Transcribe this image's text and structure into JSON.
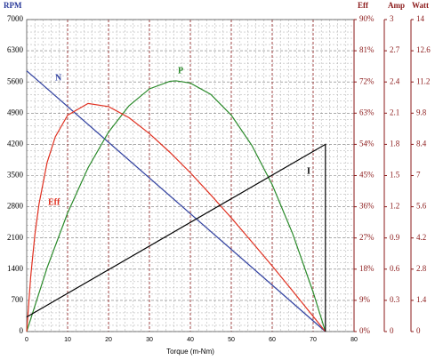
{
  "chart_data": {
    "type": "line",
    "xlabel": "Torque (m-Nm)",
    "ylabel": "RPM",
    "y2label": "Eff",
    "y3label": "Amp",
    "y4label": "Watt",
    "xlim": [
      0,
      80
    ],
    "xticks": [
      0,
      10,
      20,
      30,
      40,
      50,
      60,
      70,
      80
    ],
    "ylim": [
      0,
      7000
    ],
    "yticks": [
      0,
      700,
      1400,
      2100,
      2800,
      3500,
      4200,
      4900,
      5600,
      6300,
      7000
    ],
    "y2lim": [
      0,
      90
    ],
    "y2ticks": [
      {
        "value": 0,
        "label": "0%"
      },
      {
        "value": 9,
        "label": "9%"
      },
      {
        "value": 18,
        "label": "18%"
      },
      {
        "value": 27,
        "label": "27%"
      },
      {
        "value": 36,
        "label": "36%"
      },
      {
        "value": 45,
        "label": "45%"
      },
      {
        "value": 54,
        "label": "54%"
      },
      {
        "value": 63,
        "label": "63%"
      },
      {
        "value": 72,
        "label": "72%"
      },
      {
        "value": 81,
        "label": "81%"
      },
      {
        "value": 90,
        "label": "90%"
      }
    ],
    "y3lim": [
      0,
      3
    ],
    "y3ticks": [
      0,
      0.3,
      0.6,
      0.9,
      1.2,
      1.5,
      1.8,
      2.1,
      2.4,
      2.7,
      3
    ],
    "y4lim": [
      0,
      14
    ],
    "y4ticks": [
      0,
      1.4,
      2.8,
      4.2,
      5.6,
      7,
      8.4,
      9.8,
      11.2,
      12.6,
      14
    ],
    "grid": true,
    "series": [
      {
        "name": "N",
        "color": "#3040a0",
        "axis": "y",
        "x": [
          0,
          73
        ],
        "values": [
          5850,
          0
        ]
      },
      {
        "name": "P",
        "color": "#2a8a2a",
        "axis": "y4",
        "x": [
          0,
          5,
          10,
          15,
          20,
          25,
          30,
          35,
          36.5,
          40,
          45,
          50,
          55,
          60,
          65,
          70,
          73
        ],
        "values": [
          0,
          2.87,
          5.32,
          7.35,
          8.95,
          10.13,
          10.89,
          11.23,
          11.25,
          11.15,
          10.64,
          9.71,
          8.36,
          6.59,
          4.39,
          1.77,
          0
        ]
      },
      {
        "name": "Eff",
        "color": "#e03020",
        "axis": "y2",
        "x": [
          0,
          1,
          2,
          3,
          5,
          7,
          10,
          15,
          20,
          25,
          30,
          35,
          40,
          45,
          50,
          55,
          60,
          65,
          70,
          73
        ],
        "values": [
          0,
          16.1,
          27.9,
          36.7,
          48.8,
          56.2,
          62.4,
          65.8,
          64.9,
          61.7,
          57.1,
          51.7,
          45.8,
          39.4,
          32.8,
          25.9,
          18.9,
          11.7,
          4.4,
          0
        ]
      },
      {
        "name": "I",
        "color": "#000000",
        "axis": "y3",
        "x": [
          0,
          73,
          73
        ],
        "values": [
          0.14,
          1.8,
          0
        ]
      }
    ]
  }
}
